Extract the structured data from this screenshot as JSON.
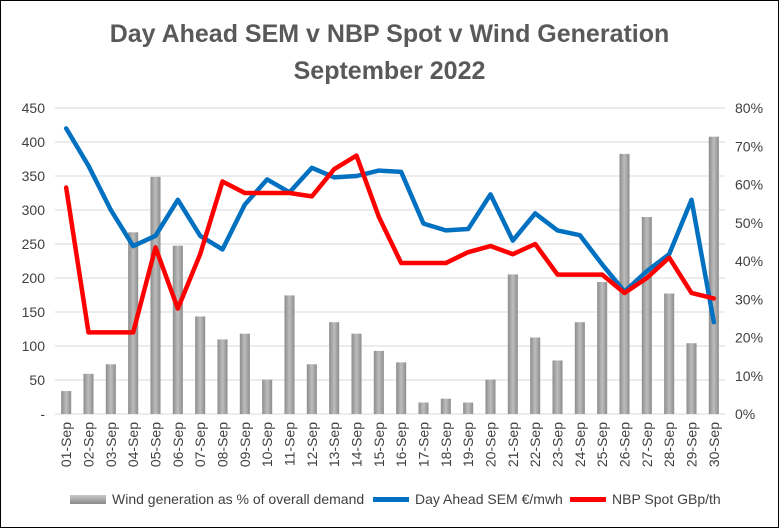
{
  "chart_data": {
    "type": "bar",
    "title": "Day Ahead SEM v NBP Spot v Wind Generation",
    "subtitle": "September 2022",
    "categories": [
      "01-Sep",
      "02-Sep",
      "03-Sep",
      "04-Sep",
      "05-Sep",
      "06-Sep",
      "07-Sep",
      "08-Sep",
      "09-Sep",
      "10-Sep",
      "11-Sep",
      "12-Sep",
      "13-Sep",
      "14-Sep",
      "15-Sep",
      "16-Sep",
      "17-Sep",
      "18-Sep",
      "19-Sep",
      "20-Sep",
      "21-Sep",
      "22-Sep",
      "23-Sep",
      "24-Sep",
      "25-Sep",
      "26-Sep",
      "27-Sep",
      "28-Sep",
      "29-Sep",
      "30-Sep"
    ],
    "left_axis": {
      "ylim": [
        0,
        450
      ],
      "ticks": [
        "-",
        "50",
        "100",
        "150",
        "200",
        "250",
        "300",
        "350",
        "400",
        "450"
      ]
    },
    "right_axis": {
      "ylim": [
        0,
        80
      ],
      "ticks": [
        "0%",
        "10%",
        "20%",
        "30%",
        "40%",
        "50%",
        "60%",
        "70%",
        "80%"
      ]
    },
    "series": [
      {
        "name": "Wind generation as % of overall demand",
        "type": "bar",
        "axis": "right",
        "color": "#a6a6a6",
        "values": [
          6,
          10.5,
          13,
          47.5,
          62,
          44,
          25.5,
          19.5,
          21,
          9,
          31,
          13,
          24,
          21,
          16.5,
          13.5,
          3,
          4,
          3,
          9,
          36.5,
          20,
          14,
          24,
          34.5,
          68,
          51.5,
          31.5,
          18.5,
          72.5
        ]
      },
      {
        "name": "Day Ahead SEM €/mwh",
        "type": "line",
        "axis": "left",
        "color": "#0070c0",
        "values": [
          420,
          365,
          300,
          247,
          262,
          315,
          262,
          242,
          308,
          345,
          326,
          362,
          348,
          350,
          358,
          356,
          280,
          270,
          272,
          323,
          255,
          295,
          270,
          263,
          220,
          180,
          210,
          235,
          315,
          135
        ]
      },
      {
        "name": "NBP Spot GBp/th",
        "type": "line",
        "axis": "left",
        "color": "#ff0000",
        "values": [
          333,
          120,
          120,
          120,
          245,
          155,
          235,
          342,
          325,
          325,
          325,
          320,
          360,
          380,
          290,
          222,
          222,
          222,
          238,
          247,
          235,
          250,
          205,
          205,
          205,
          178,
          200,
          230,
          178,
          170
        ]
      }
    ],
    "grid": "horizontal",
    "legend_position": "bottom"
  }
}
